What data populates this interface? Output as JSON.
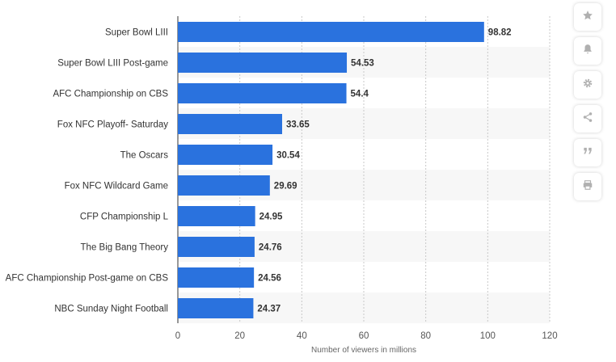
{
  "chart_data": {
    "type": "bar",
    "orientation": "horizontal",
    "categories": [
      "Super Bowl LIII",
      "Super Bowl LIII Post-game",
      "AFC Championship on CBS",
      "Fox NFC Playoff- Saturday",
      "The Oscars",
      "Fox NFC Wildcard Game",
      "CFP Championship L",
      "The Big Bang Theory",
      "AFC Championship Post-game on CBS",
      "NBC Sunday Night Football"
    ],
    "values": [
      98.82,
      54.53,
      54.4,
      33.65,
      30.54,
      29.69,
      24.95,
      24.76,
      24.56,
      24.37
    ],
    "value_labels": [
      "98.82",
      "54.53",
      "54.4",
      "33.65",
      "30.54",
      "29.69",
      "24.95",
      "24.76",
      "24.56",
      "24.37"
    ],
    "xlabel": "Number of viewers in millions",
    "xlim": [
      0,
      120
    ],
    "xticks": [
      0,
      20,
      40,
      60,
      80,
      100,
      120
    ],
    "grid": true,
    "bar_color": "#2a72de",
    "stripe_color": "#f7f7f7"
  },
  "toolbar": {
    "items": [
      {
        "name": "star-icon"
      },
      {
        "name": "bell-icon"
      },
      {
        "name": "gear-icon"
      },
      {
        "name": "share-icon"
      },
      {
        "name": "quote-icon"
      },
      {
        "name": "print-icon"
      }
    ],
    "icon_color": "#b0b0b0"
  }
}
